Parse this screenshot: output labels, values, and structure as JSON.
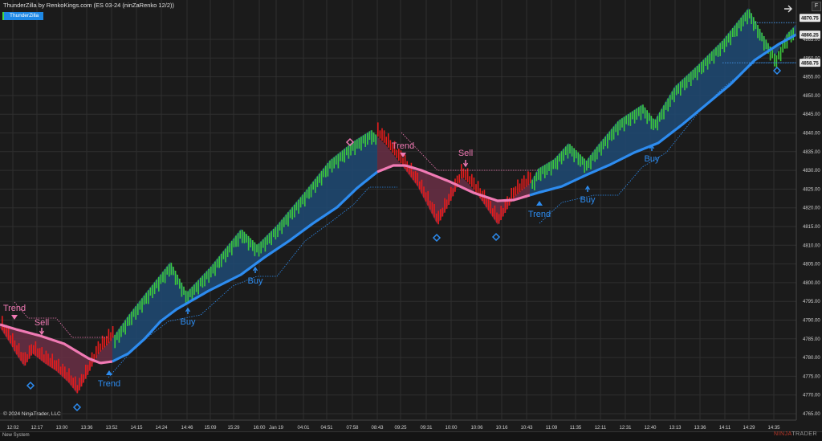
{
  "title": "ThunderZilla by RenkoKings.com (ES 03-24 (ninZaRenko 12/2))",
  "indicator_badge": "ThunderZilla",
  "copyright": "© 2024 NinjaTrader, LLC",
  "status": "New System",
  "watermark": {
    "brand": "NINJA",
    "rest": "TRADER"
  },
  "f_button": "F",
  "icons": {
    "expand": "arrow-right-icon",
    "signal": "diamond-icon"
  },
  "colors": {
    "up": "#3cc83c",
    "down": "#e51c1c",
    "ma_up": "#2d8cf0",
    "ma_down": "#f07ab4",
    "fill_up": "#1f4a74",
    "fill_down": "#6a2f45"
  },
  "price_axis": {
    "ticks": [
      "4865.00",
      "4860.00",
      "4855.00",
      "4850.00",
      "4845.00",
      "4840.00",
      "4835.00",
      "4830.00",
      "4825.00",
      "4820.00",
      "4815.00",
      "4810.00",
      "4805.00",
      "4800.00",
      "4795.00",
      "4790.00",
      "4785.00",
      "4780.00",
      "4775.00",
      "4770.00",
      "4765.00"
    ],
    "markers": [
      "4870.75",
      "4866.25",
      "4858.75"
    ]
  },
  "time_axis": [
    "12:02",
    "12:17",
    "13:00",
    "13:36",
    "13:52",
    "14:15",
    "14:24",
    "14:46",
    "15:09",
    "15:29",
    "16:00",
    "Jan 19",
    "04:01",
    "04:51",
    "07:58",
    "08:43",
    "09:25",
    "09:31",
    "10:00",
    "10:06",
    "10:16",
    "10:43",
    "11:09",
    "11:35",
    "12:11",
    "12:31",
    "12:40",
    "13:13",
    "13:36",
    "14:11",
    "14:29",
    "14:35"
  ],
  "labels": {
    "trend_sell_1": "Trend",
    "sell_1": "Sell",
    "trend_buy_1": "Trend",
    "buy_1": "Buy",
    "buy_2": "Buy",
    "trend_sell_2": "Trend",
    "sell_2": "Sell",
    "trend_buy_2": "Trend",
    "buy_3": "Buy",
    "buy_4": "Buy"
  }
}
